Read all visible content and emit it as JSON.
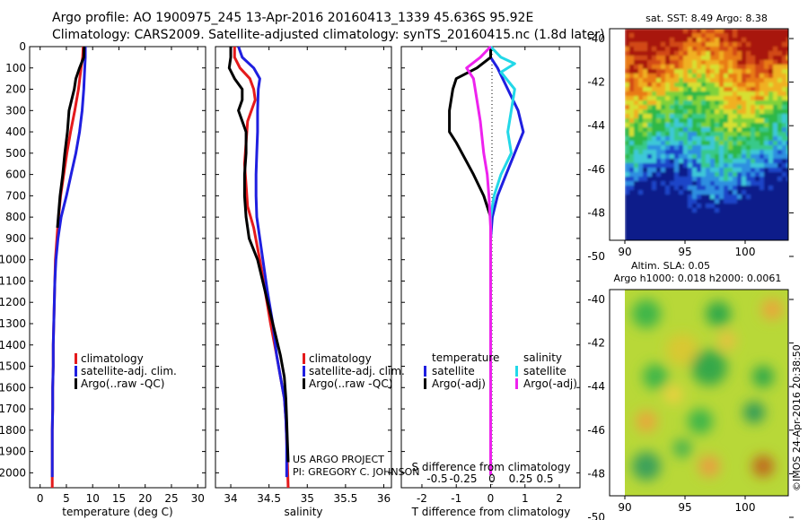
{
  "title_line1": "Argo profile: AO 1900975_245 13-Apr-2016 20160413_1339 45.636S 95.92E",
  "title_line2": "Climatology: CARS2009. Satellite-adjusted climatology: synTS_20160415.nc (1.8d later)",
  "colors": {
    "climatology": "#e41a1c",
    "satellite": "#1f1fe0",
    "argo": "#000000",
    "sat_salinity": "#22d8e8",
    "argo_salinity_diff": "#ee22ee"
  },
  "project_line1": "US ARGO PROJECT",
  "project_line2": "PI: GREGORY C. JOHNSON",
  "map_top_title": "sat. SST: 8.49  Argo: 8.38",
  "map_bottom_title1": "Altim. SLA: 0.05",
  "map_bottom_title2": "Argo h1000: 0.018 h2000: 0.0061",
  "stamp": "©IMOS 24-Apr-2016 20:38:50",
  "chart_data": [
    {
      "type": "line",
      "xlabel": "temperature (deg C)",
      "ylabel": "",
      "xticks": [
        0,
        5,
        10,
        15,
        20,
        25,
        30
      ],
      "yticks": [
        0,
        100,
        200,
        300,
        400,
        500,
        600,
        700,
        800,
        900,
        1000,
        1100,
        1200,
        1300,
        1400,
        1500,
        1600,
        1700,
        1800,
        1900,
        2000
      ],
      "xlim": [
        -2,
        31.5
      ],
      "ylim": [
        2070,
        0
      ],
      "legend": [
        "climatology",
        "satellite-adj. clim.",
        "Argo(..raw -QC)"
      ],
      "series": [
        {
          "name": "climatology",
          "color": "#e41a1c",
          "x": [
            8.2,
            8.1,
            7.8,
            7.3,
            6.6,
            5.8,
            5.1,
            4.5,
            3.9,
            3.5,
            3.2,
            2.9,
            2.8,
            2.7,
            2.6,
            2.5,
            2.5,
            2.4,
            2.4,
            2.3,
            2.3,
            2.3
          ],
          "y": [
            0,
            50,
            100,
            200,
            300,
            400,
            500,
            600,
            700,
            800,
            900,
            1000,
            1100,
            1200,
            1300,
            1400,
            1500,
            1600,
            1700,
            1800,
            1900,
            2070
          ]
        },
        {
          "name": "satellite-adj. clim.",
          "color": "#1f1fe0",
          "x": [
            8.6,
            8.6,
            8.5,
            8.3,
            8.0,
            7.5,
            6.8,
            5.9,
            5.0,
            4.0,
            3.4,
            3.0,
            2.8,
            2.7,
            2.6,
            2.5,
            2.5,
            2.4,
            2.4,
            2.3,
            2.3,
            2.3
          ],
          "y": [
            0,
            50,
            100,
            200,
            300,
            400,
            500,
            600,
            700,
            800,
            900,
            1000,
            1100,
            1200,
            1300,
            1400,
            1500,
            1600,
            1700,
            1800,
            1900,
            2020
          ]
        },
        {
          "name": "Argo(..raw -QC)",
          "color": "#000000",
          "x": [
            8.4,
            8.3,
            7.5,
            6.8,
            6.5,
            6.0,
            5.5,
            5.2,
            4.7,
            4.3,
            3.8,
            3.3
          ],
          "y": [
            0,
            50,
            100,
            150,
            200,
            250,
            300,
            400,
            500,
            600,
            700,
            850
          ]
        }
      ]
    },
    {
      "type": "line",
      "xlabel": "salinity",
      "ylabel": "",
      "xticks": [
        34,
        34.5,
        35,
        35.5,
        36
      ],
      "xlim": [
        33.8,
        36.1
      ],
      "ylim": [
        2070,
        0
      ],
      "legend": [
        "climatology",
        "satellite-adj. clim.",
        "Argo(..raw -QC)"
      ],
      "series": [
        {
          "name": "climatology",
          "color": "#e41a1c",
          "x": [
            34.05,
            34.05,
            34.12,
            34.25,
            34.3,
            34.32,
            34.22,
            34.2,
            34.18,
            34.2,
            34.22,
            34.3,
            34.38,
            34.45,
            34.52,
            34.6,
            34.65,
            34.7,
            34.72,
            34.73,
            34.74,
            34.75
          ],
          "y": [
            0,
            50,
            100,
            150,
            200,
            250,
            350,
            450,
            550,
            650,
            750,
            850,
            1000,
            1150,
            1300,
            1450,
            1550,
            1650,
            1750,
            1850,
            1950,
            2070
          ]
        },
        {
          "name": "satellite-adj. clim.",
          "color": "#1f1fe0",
          "x": [
            34.1,
            34.15,
            34.3,
            34.38,
            34.36,
            34.35,
            34.35,
            34.34,
            34.33,
            34.33,
            34.34,
            34.38,
            34.42,
            34.48,
            34.55,
            34.6,
            34.65,
            34.7,
            34.72,
            34.73,
            34.73,
            34.73
          ],
          "y": [
            0,
            50,
            100,
            150,
            200,
            300,
            400,
            500,
            600,
            700,
            800,
            900,
            1000,
            1150,
            1300,
            1450,
            1550,
            1650,
            1750,
            1850,
            1950,
            2020
          ]
        },
        {
          "name": "Argo(..raw -QC)",
          "color": "#000000",
          "x": [
            34.0,
            34.0,
            33.98,
            34.05,
            34.15,
            34.15,
            34.1,
            34.2,
            34.2,
            34.18,
            34.18,
            34.2,
            34.24,
            34.35,
            34.45,
            34.55,
            34.65,
            34.7,
            34.72,
            34.73,
            34.74,
            34.75
          ],
          "y": [
            0,
            50,
            100,
            150,
            200,
            250,
            300,
            400,
            500,
            600,
            700,
            800,
            900,
            1000,
            1150,
            1300,
            1450,
            1550,
            1650,
            1750,
            1850,
            1950
          ]
        }
      ]
    },
    {
      "type": "line",
      "xlabel": "T difference from climatology",
      "ylabel": "",
      "top_xlabel": "S difference from climatology",
      "xticks": [
        -2,
        -1,
        0,
        1,
        2
      ],
      "top_xticks": [
        "-0.5",
        "-0.25",
        "0",
        "0.25",
        "0.5"
      ],
      "xlim": [
        -2.6,
        2.6
      ],
      "ylim": [
        2070,
        0
      ],
      "legend_titles": [
        "temperature",
        "salinity"
      ],
      "legend": [
        "satellite",
        "Argo(-adj)",
        "satellite",
        "Argo(-adj)"
      ],
      "series": [
        {
          "name": "satellite",
          "color": "#1f1fe0",
          "x": [
            0,
            0,
            0.2,
            0.5,
            0.8,
            0.95,
            0.7,
            0.45,
            0.2,
            0.05,
            0,
            0,
            0,
            0,
            0,
            0,
            0,
            0,
            0,
            0
          ],
          "y": [
            0,
            50,
            100,
            200,
            300,
            400,
            500,
            600,
            700,
            800,
            900,
            1000,
            1100,
            1200,
            1300,
            1400,
            1500,
            1600,
            1800,
            2010
          ]
        },
        {
          "name": "Argo(-adj)",
          "color": "#000000",
          "x": [
            0,
            0,
            -0.4,
            -1.0,
            -1.1,
            -1.2,
            -1.2,
            -1.0,
            -0.5,
            -0.2,
            0,
            0,
            0,
            0,
            0,
            0,
            0,
            0,
            0,
            0
          ],
          "y": [
            0,
            50,
            100,
            150,
            200,
            300,
            400,
            450,
            600,
            700,
            800,
            900,
            1000,
            1100,
            1200,
            1300,
            1400,
            1500,
            1800,
            2010
          ]
        },
        {
          "name": "satellite",
          "color": "#22d8e8",
          "x": [
            0,
            0.3,
            0.7,
            0.3,
            0.7,
            0.6,
            0.5,
            0.6,
            0.3,
            0.1,
            0,
            0,
            0,
            0,
            0,
            0
          ],
          "y": [
            0,
            50,
            80,
            120,
            200,
            300,
            400,
            500,
            600,
            700,
            800,
            900,
            1000,
            1200,
            1600,
            2010
          ]
        },
        {
          "name": "Argo(-adj)",
          "color": "#ee22ee",
          "x": [
            0,
            -0.3,
            -0.7,
            -0.5,
            -0.4,
            -0.3,
            -0.2,
            -0.1,
            -0.05,
            0,
            0,
            0,
            0
          ],
          "y": [
            0,
            50,
            100,
            150,
            250,
            350,
            500,
            600,
            700,
            850,
            1100,
            1600,
            2010
          ]
        }
      ]
    },
    {
      "type": "heatmap",
      "title": "sat. SST: 8.49  Argo: 8.38",
      "xticks": [
        "90",
        "95",
        "100"
      ],
      "yticks": [
        "-40",
        "-42",
        "-44",
        "-46",
        "-48",
        "-50"
      ]
    },
    {
      "type": "heatmap",
      "title": "Altim. SLA: 0.05",
      "xticks": [
        "90",
        "95",
        "100"
      ],
      "yticks": [
        "-40",
        "-42",
        "-44",
        "-46",
        "-48",
        "-50"
      ]
    }
  ]
}
